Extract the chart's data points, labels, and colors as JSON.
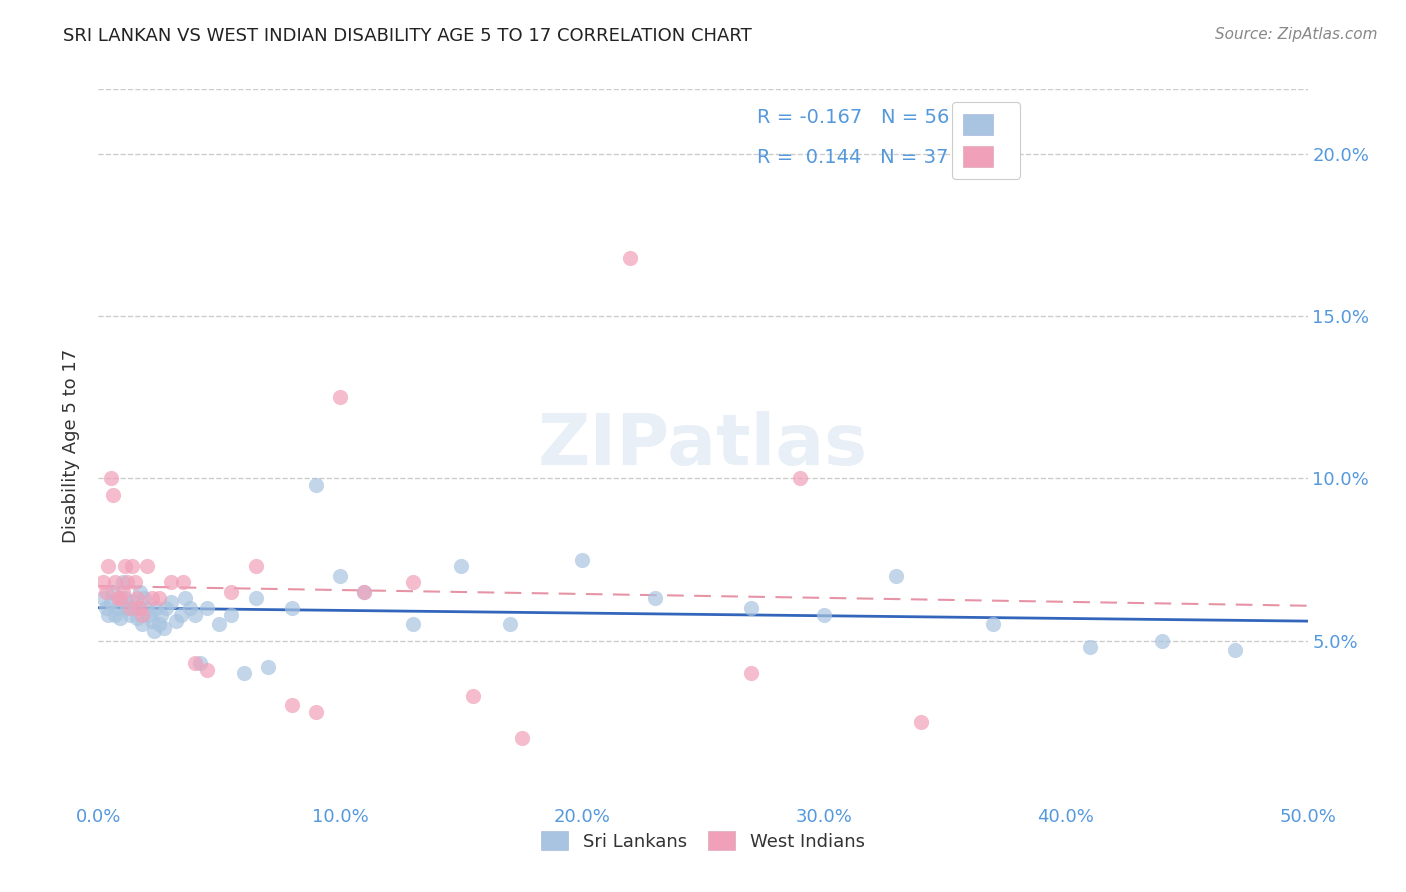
{
  "title": "SRI LANKAN VS WEST INDIAN DISABILITY AGE 5 TO 17 CORRELATION CHART",
  "source": "Source: ZipAtlas.com",
  "ylabel": "Disability Age 5 to 17",
  "xlim": [
    0.0,
    0.5
  ],
  "ylim": [
    0.0,
    0.22
  ],
  "xticks": [
    0.0,
    0.1,
    0.2,
    0.3,
    0.4,
    0.5
  ],
  "yticks": [
    0.05,
    0.1,
    0.15,
    0.2
  ],
  "xticklabels": [
    "0.0%",
    "10.0%",
    "20.0%",
    "30.0%",
    "40.0%",
    "50.0%"
  ],
  "yticklabels": [
    "5.0%",
    "10.0%",
    "15.0%",
    "20.0%"
  ],
  "background_color": "#ffffff",
  "grid_color": "#cccccc",
  "tick_color": "#5599dd",
  "sri_lankan_color": "#a8c4e0",
  "west_indian_color": "#f0a0b8",
  "sri_lankan_R": -0.167,
  "sri_lankan_N": 56,
  "west_indian_R": 0.144,
  "west_indian_N": 37,
  "sri_lankan_line_color": "#3366bb",
  "west_indian_line_color": "#dd6680",
  "legend_label_1": "Sri Lankans",
  "legend_label_2": "West Indians",
  "sri_lankans_x": [
    0.002,
    0.003,
    0.004,
    0.005,
    0.006,
    0.007,
    0.008,
    0.009,
    0.01,
    0.011,
    0.012,
    0.013,
    0.014,
    0.015,
    0.016,
    0.017,
    0.018,
    0.019,
    0.02,
    0.021,
    0.022,
    0.023,
    0.024,
    0.025,
    0.026,
    0.027,
    0.028,
    0.03,
    0.032,
    0.034,
    0.036,
    0.038,
    0.04,
    0.042,
    0.045,
    0.05,
    0.055,
    0.06,
    0.065,
    0.07,
    0.08,
    0.09,
    0.1,
    0.11,
    0.13,
    0.15,
    0.17,
    0.2,
    0.23,
    0.27,
    0.3,
    0.33,
    0.37,
    0.41,
    0.44,
    0.47
  ],
  "sri_lankans_y": [
    0.063,
    0.06,
    0.058,
    0.062,
    0.065,
    0.058,
    0.06,
    0.057,
    0.068,
    0.063,
    0.06,
    0.058,
    0.062,
    0.06,
    0.057,
    0.065,
    0.055,
    0.063,
    0.06,
    0.058,
    0.056,
    0.053,
    0.06,
    0.055,
    0.058,
    0.054,
    0.06,
    0.062,
    0.056,
    0.058,
    0.063,
    0.06,
    0.058,
    0.043,
    0.06,
    0.055,
    0.058,
    0.04,
    0.063,
    0.042,
    0.06,
    0.098,
    0.07,
    0.065,
    0.055,
    0.073,
    0.055,
    0.075,
    0.063,
    0.06,
    0.058,
    0.07,
    0.055,
    0.048,
    0.05,
    0.047
  ],
  "west_indians_x": [
    0.002,
    0.003,
    0.004,
    0.005,
    0.006,
    0.007,
    0.008,
    0.009,
    0.01,
    0.011,
    0.012,
    0.013,
    0.014,
    0.015,
    0.016,
    0.017,
    0.018,
    0.02,
    0.022,
    0.025,
    0.03,
    0.035,
    0.04,
    0.045,
    0.055,
    0.065,
    0.08,
    0.09,
    0.1,
    0.11,
    0.13,
    0.155,
    0.175,
    0.22,
    0.27,
    0.29,
    0.34
  ],
  "west_indians_y": [
    0.068,
    0.065,
    0.073,
    0.1,
    0.095,
    0.068,
    0.063,
    0.063,
    0.065,
    0.073,
    0.068,
    0.06,
    0.073,
    0.068,
    0.063,
    0.06,
    0.058,
    0.073,
    0.063,
    0.063,
    0.068,
    0.068,
    0.043,
    0.041,
    0.065,
    0.073,
    0.03,
    0.028,
    0.125,
    0.065,
    0.068,
    0.033,
    0.02,
    0.168,
    0.04,
    0.1,
    0.025
  ]
}
